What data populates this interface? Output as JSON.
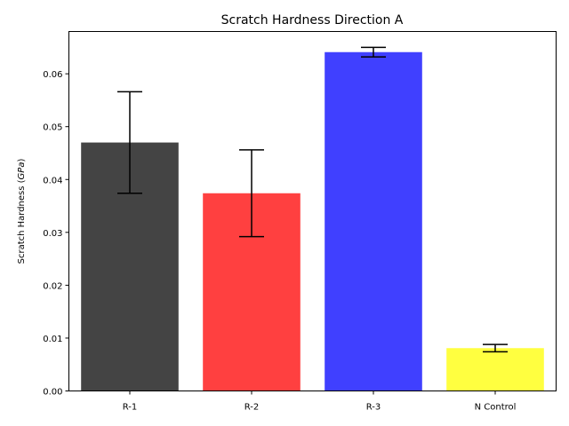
{
  "chart_data": {
    "type": "bar",
    "title": "Scratch Hardness Direction A",
    "xlabel": "",
    "ylabel_prefix": "Scratch Hardness (",
    "ylabel_unit": "GPa",
    "ylabel_suffix": ")",
    "categories": [
      "R-1",
      "R-2",
      "R-3",
      "N Control"
    ],
    "values": [
      0.047,
      0.0374,
      0.0641,
      0.0081
    ],
    "errors": [
      0.0096,
      0.0082,
      0.0009,
      0.0007
    ],
    "colors": [
      "#444444",
      "#ff4040",
      "#4040ff",
      "#ffff40"
    ],
    "ylim": [
      0,
      0.068
    ],
    "yticks": [
      "0.00",
      "0.01",
      "0.02",
      "0.03",
      "0.04",
      "0.05",
      "0.06"
    ],
    "ytick_values": [
      0,
      0.01,
      0.02,
      0.03,
      0.04,
      0.05,
      0.06
    ],
    "grid": false,
    "legend": false
  }
}
